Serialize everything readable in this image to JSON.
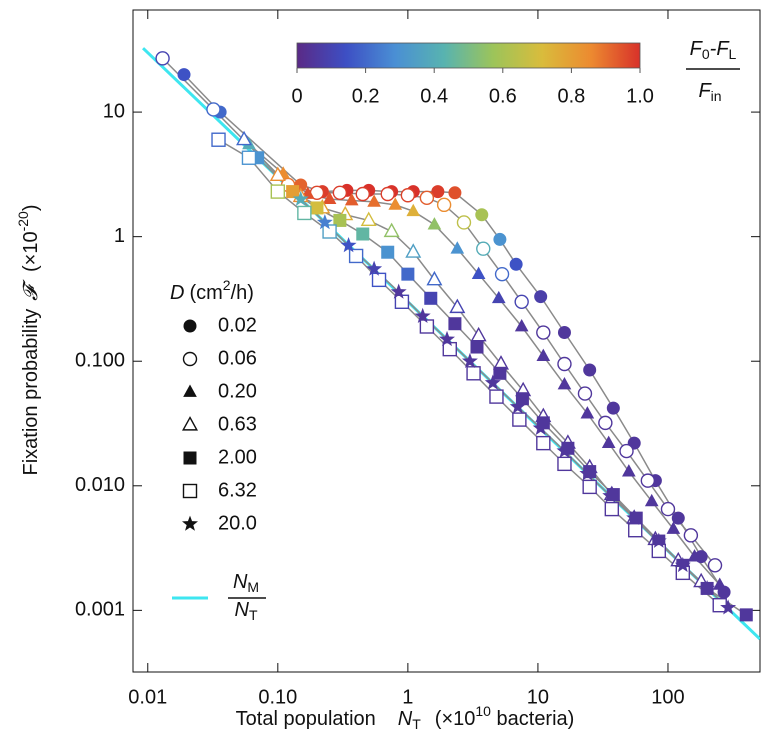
{
  "chart_data": {
    "type": "scatter",
    "log_x": true,
    "log_y": true,
    "xlim": [
      0.0077,
      510
    ],
    "ylim": [
      0.00032,
      66
    ],
    "xticks": [
      0.01,
      {
        "value": 0.1,
        "label": "0.10"
      },
      1,
      10,
      100
    ],
    "yticks": [
      {
        "value": 0.001,
        "label": "0.001"
      },
      {
        "value": 0.01,
        "label": "0.010"
      },
      {
        "value": 0.1,
        "label": "0.100"
      },
      1,
      10
    ],
    "xlabel": {
      "text": "Total population",
      "symbol": "N",
      "symbol_sub": "T",
      "unit": "(×10",
      "unit_exp": "10",
      "unit_end": " bacteria)"
    },
    "ylabel": {
      "text": "Fixation probability",
      "symbol": "𝓕",
      "unit": "(×10",
      "unit_exp": "-20",
      "unit_end": ")"
    },
    "legend_title": {
      "symbol": "D",
      "unit": "(cm",
      "unit_exp": "2",
      "unit_end": "/h)"
    },
    "line_color": "#8a8a8a",
    "colormap": [
      "#5a2a86",
      "#3d4fc4",
      "#4a8fd4",
      "#58b3b0",
      "#9cc45a",
      "#d9bc3c",
      "#ec8a30",
      "#d8312a"
    ],
    "clim": [
      0,
      1
    ],
    "cticks": [
      0,
      0.2,
      0.4,
      0.6,
      0.8,
      {
        "value": 1,
        "label": "1.0"
      }
    ],
    "colorbar_label": {
      "numerator": [
        "F",
        "0",
        "-F",
        "L"
      ],
      "denominator": [
        "F",
        "in"
      ]
    },
    "reference_line": {
      "numerator": [
        "N",
        "M"
      ],
      "denominator": [
        "N",
        "T"
      ],
      "color": "#3ee6f0",
      "x": [
        0.0092,
        510
      ],
      "y": [
        32.6,
        0.000588
      ]
    },
    "series": [
      {
        "name": "0.02",
        "marker": "circle",
        "filled": true,
        "x": [
          0.019,
          0.036,
          0.15,
          0.22,
          0.34,
          0.5,
          0.75,
          1.1,
          1.7,
          2.3,
          3.7,
          5.1,
          6.8,
          10.5,
          16,
          25,
          38,
          55,
          80,
          120,
          180,
          270
        ],
        "values": [
          20,
          10,
          2.6,
          2.3,
          2.35,
          2.35,
          2.3,
          2.3,
          2.3,
          2.25,
          1.5,
          0.95,
          0.6,
          0.33,
          0.17,
          0.085,
          0.042,
          0.022,
          0.011,
          0.0055,
          0.0027,
          0.0014
        ],
        "c": [
          0.15,
          0.2,
          0.92,
          0.98,
          1,
          1,
          1,
          1,
          0.98,
          0.95,
          0.6,
          0.3,
          0.15,
          0.08,
          0.05,
          0.05,
          0.05,
          0.05,
          0.05,
          0.05,
          0.05,
          0.05
        ]
      },
      {
        "name": "0.06",
        "marker": "circle",
        "filled": false,
        "x": [
          0.013,
          0.032,
          0.12,
          0.2,
          0.3,
          0.45,
          0.7,
          1.0,
          1.4,
          1.9,
          2.7,
          3.8,
          5.3,
          7.5,
          11,
          16,
          23,
          33,
          48,
          70,
          100,
          150,
          230
        ],
        "values": [
          27,
          10.5,
          2.6,
          2.25,
          2.25,
          2.2,
          2.2,
          2.15,
          2.05,
          1.8,
          1.3,
          0.8,
          0.5,
          0.3,
          0.17,
          0.095,
          0.055,
          0.032,
          0.019,
          0.011,
          0.0065,
          0.004,
          0.0023
        ],
        "c": [
          0.1,
          0.2,
          0.9,
          0.97,
          0.98,
          0.98,
          0.98,
          0.97,
          0.93,
          0.85,
          0.65,
          0.4,
          0.2,
          0.1,
          0.05,
          0.05,
          0.05,
          0.05,
          0.05,
          0.05,
          0.05,
          0.05,
          0.05
        ]
      },
      {
        "name": "0.20",
        "marker": "triangle",
        "filled": true,
        "x": [
          0.06,
          0.11,
          0.17,
          0.25,
          0.37,
          0.55,
          0.8,
          1.1,
          1.6,
          2.4,
          3.5,
          5,
          7.5,
          11,
          16,
          24,
          35,
          50,
          75,
          110,
          160,
          250
        ],
        "values": [
          5.5,
          3.2,
          2.2,
          2.0,
          1.95,
          1.9,
          1.8,
          1.6,
          1.25,
          0.8,
          0.5,
          0.32,
          0.19,
          0.11,
          0.065,
          0.038,
          0.022,
          0.013,
          0.0075,
          0.0045,
          0.0027,
          0.0016
        ],
        "c": [
          0.4,
          0.85,
          0.95,
          0.95,
          0.93,
          0.9,
          0.85,
          0.75,
          0.55,
          0.3,
          0.15,
          0.1,
          0.05,
          0.05,
          0.05,
          0.05,
          0.05,
          0.05,
          0.05,
          0.05,
          0.05,
          0.05
        ]
      },
      {
        "name": "0.63",
        "marker": "triangle",
        "filled": false,
        "x": [
          0.055,
          0.1,
          0.15,
          0.22,
          0.33,
          0.5,
          0.75,
          1.1,
          1.6,
          2.4,
          3.5,
          5.2,
          7.7,
          11,
          17,
          25,
          37,
          55,
          80,
          120,
          180
        ],
        "values": [
          6,
          3.1,
          2.1,
          1.7,
          1.5,
          1.35,
          1.1,
          0.75,
          0.45,
          0.27,
          0.16,
          0.095,
          0.058,
          0.036,
          0.022,
          0.014,
          0.0085,
          0.0055,
          0.0037,
          0.0025,
          0.0017
        ],
        "c": [
          0.2,
          0.85,
          0.85,
          0.8,
          0.75,
          0.7,
          0.55,
          0.35,
          0.2,
          0.1,
          0.05,
          0.05,
          0.05,
          0.05,
          0.05,
          0.05,
          0.05,
          0.05,
          0.05,
          0.05,
          0.05
        ]
      },
      {
        "name": "2.00",
        "marker": "square",
        "filled": true,
        "x": [
          0.07,
          0.13,
          0.2,
          0.3,
          0.45,
          0.7,
          1.0,
          1.5,
          2.3,
          3.4,
          5.1,
          7.6,
          11,
          17,
          25,
          38,
          57,
          85,
          130,
          200,
          400
        ],
        "values": [
          4.3,
          2.3,
          1.7,
          1.35,
          1.05,
          0.75,
          0.5,
          0.32,
          0.2,
          0.13,
          0.08,
          0.05,
          0.032,
          0.02,
          0.013,
          0.0085,
          0.0055,
          0.0036,
          0.0023,
          0.0015,
          0.00092
        ],
        "c": [
          0.3,
          0.8,
          0.7,
          0.6,
          0.45,
          0.3,
          0.2,
          0.1,
          0.05,
          0.05,
          0.05,
          0.05,
          0.05,
          0.05,
          0.05,
          0.05,
          0.05,
          0.05,
          0.05,
          0.05,
          0.05
        ]
      },
      {
        "name": "6.32",
        "marker": "square",
        "filled": false,
        "x": [
          0.035,
          0.06,
          0.1,
          0.16,
          0.25,
          0.4,
          0.6,
          0.9,
          1.4,
          2.1,
          3.2,
          4.8,
          7.2,
          11,
          16,
          25,
          37,
          56,
          85,
          130,
          250
        ],
        "values": [
          6,
          4.3,
          2.3,
          1.55,
          1.1,
          0.7,
          0.45,
          0.3,
          0.19,
          0.125,
          0.08,
          0.052,
          0.034,
          0.022,
          0.015,
          0.0098,
          0.0065,
          0.0044,
          0.003,
          0.002,
          0.0011
        ],
        "c": [
          0.2,
          0.3,
          0.6,
          0.45,
          0.35,
          0.2,
          0.15,
          0.1,
          0.05,
          0.05,
          0.05,
          0.05,
          0.05,
          0.05,
          0.05,
          0.05,
          0.05,
          0.05,
          0.05,
          0.05,
          0.05
        ]
      },
      {
        "name": "20.0",
        "marker": "star",
        "filled": true,
        "x": [
          0.15,
          0.23,
          0.35,
          0.55,
          0.85,
          1.3,
          2,
          3,
          4.5,
          7,
          10.5,
          16,
          24,
          36,
          55,
          85,
          130,
          200,
          290
        ],
        "values": [
          2.0,
          1.3,
          0.85,
          0.55,
          0.36,
          0.23,
          0.15,
          0.1,
          0.067,
          0.043,
          0.029,
          0.019,
          0.0125,
          0.0083,
          0.0055,
          0.0036,
          0.0023,
          0.0015,
          0.00105
        ],
        "c": [
          0.4,
          0.25,
          0.15,
          0.1,
          0.05,
          0.05,
          0.05,
          0.05,
          0.05,
          0.05,
          0.05,
          0.05,
          0.05,
          0.05,
          0.05,
          0.05,
          0.05,
          0.05,
          0.05
        ]
      }
    ]
  }
}
